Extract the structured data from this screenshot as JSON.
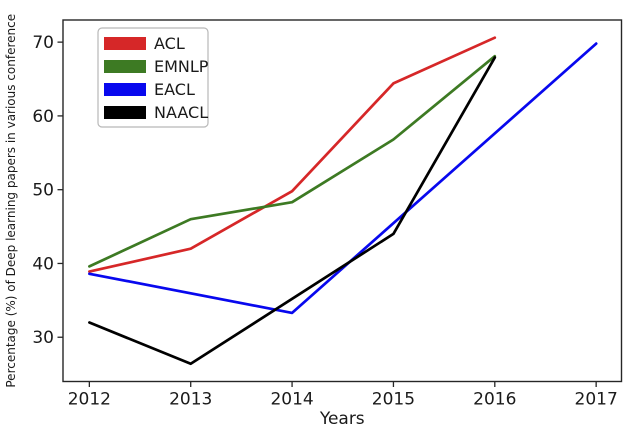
{
  "chart_data": {
    "type": "line",
    "title": "",
    "xlabel": "Years",
    "ylabel": "Percentage (%) of Deep learning papers in various conference",
    "xlim": [
      2011.74,
      2017.25
    ],
    "ylim": [
      24,
      73
    ],
    "xticks": [
      2012,
      2013,
      2014,
      2015,
      2016,
      2017
    ],
    "yticks": [
      30,
      40,
      50,
      60,
      70
    ],
    "grid": false,
    "legend_position": "upper-left",
    "legend_labels": [
      "ACL",
      "EMNLP",
      "EACL",
      "NAACL"
    ],
    "series": [
      {
        "name": "ACL",
        "color": "#d62728",
        "points": [
          [
            2012,
            38.9
          ],
          [
            2013,
            42.0
          ],
          [
            2014,
            49.8
          ],
          [
            2015,
            64.4
          ],
          [
            2016,
            70.6
          ]
        ]
      },
      {
        "name": "EMNLP",
        "color": "#3d7a23",
        "points": [
          [
            2012,
            39.6
          ],
          [
            2013,
            46.0
          ],
          [
            2014,
            48.3
          ],
          [
            2015,
            56.8
          ],
          [
            2016,
            68.1
          ]
        ]
      },
      {
        "name": "EACL",
        "color": "#0808ee",
        "points": [
          [
            2012,
            38.6
          ],
          [
            2014,
            33.3
          ],
          [
            2017,
            69.8
          ]
        ]
      },
      {
        "name": "NAACL",
        "color": "#000000",
        "points": [
          [
            2012,
            32.0
          ],
          [
            2013,
            26.4
          ],
          [
            2015,
            44.0
          ],
          [
            2016,
            67.9
          ]
        ]
      }
    ],
    "axis_color": "#262626",
    "tick_label_color": "#1a1a1a",
    "background": "#ffffff",
    "legend_border_color": "#b8b8b8"
  }
}
